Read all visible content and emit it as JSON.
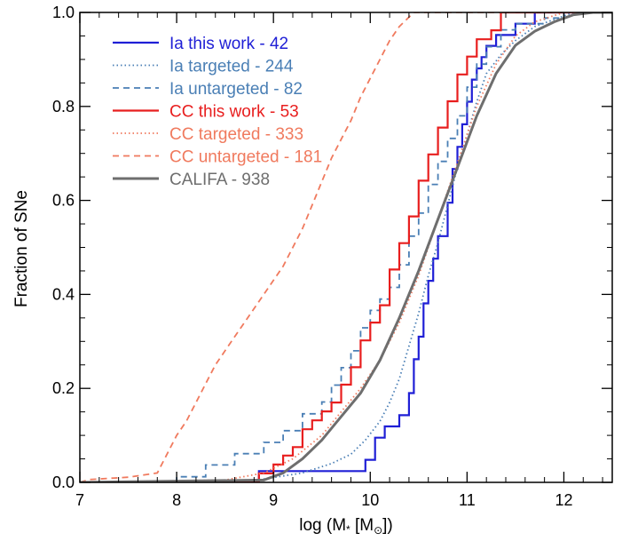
{
  "chart_data": {
    "type": "line",
    "xlabel_main": "log (M",
    "xlabel_sub": "*",
    "xlabel_mid": " [M",
    "xlabel_sun": "⊙",
    "xlabel_end": "])",
    "ylabel": "Fraction of SNe",
    "xlim": [
      7,
      12.5
    ],
    "ylim": [
      0,
      1.0
    ],
    "xticks": [
      "7",
      "8",
      "9",
      "10",
      "11",
      "12"
    ],
    "yticks": [
      "0.0",
      "0.2",
      "0.4",
      "0.6",
      "0.8",
      "1.0"
    ],
    "legend_position": "top-left",
    "series": [
      {
        "name": "Ia this work - 42",
        "color": "#1f1fd6",
        "dash": "solid",
        "step": true,
        "x": [
          7.0,
          8.85,
          9.95,
          10.05,
          10.15,
          10.3,
          10.4,
          10.45,
          10.5,
          10.55,
          10.6,
          10.65,
          10.7,
          10.8,
          10.85,
          10.9,
          10.95,
          11.0,
          11.05,
          11.1,
          11.15,
          11.2,
          11.3,
          11.5,
          11.7,
          11.85,
          12.5
        ],
        "y": [
          0.0,
          0.024,
          0.048,
          0.095,
          0.119,
          0.143,
          0.19,
          0.262,
          0.31,
          0.381,
          0.429,
          0.476,
          0.524,
          0.595,
          0.667,
          0.714,
          0.762,
          0.81,
          0.857,
          0.881,
          0.905,
          0.929,
          0.952,
          0.976,
          1.0,
          1.0,
          1.0
        ]
      },
      {
        "name": "Ia targeted - 244",
        "color": "#4a7fb5",
        "dash": "dotted",
        "step": false,
        "x": [
          7.0,
          8.8,
          9.3,
          9.6,
          9.8,
          9.95,
          10.1,
          10.2,
          10.3,
          10.4,
          10.5,
          10.6,
          10.7,
          10.8,
          10.9,
          11.0,
          11.1,
          11.2,
          11.35,
          11.5,
          11.7,
          11.9,
          12.1,
          12.5
        ],
        "y": [
          0.0,
          0.004,
          0.02,
          0.04,
          0.06,
          0.09,
          0.13,
          0.17,
          0.22,
          0.29,
          0.36,
          0.44,
          0.51,
          0.59,
          0.67,
          0.74,
          0.81,
          0.87,
          0.91,
          0.94,
          0.97,
          0.985,
          1.0,
          1.0
        ]
      },
      {
        "name": "Ia untargeted - 82",
        "color": "#4a7fb5",
        "dash": "dashed",
        "step": true,
        "x": [
          7.0,
          8.0,
          8.3,
          8.6,
          8.9,
          9.1,
          9.3,
          9.5,
          9.6,
          9.7,
          9.8,
          9.9,
          10.0,
          10.1,
          10.2,
          10.3,
          10.4,
          10.5,
          10.6,
          10.7,
          10.8,
          10.9,
          11.0,
          11.1,
          11.2,
          11.35,
          11.5,
          11.8,
          12.0,
          12.5
        ],
        "y": [
          0.0,
          0.012,
          0.037,
          0.061,
          0.085,
          0.11,
          0.146,
          0.171,
          0.207,
          0.244,
          0.28,
          0.329,
          0.366,
          0.39,
          0.415,
          0.463,
          0.524,
          0.573,
          0.634,
          0.683,
          0.732,
          0.78,
          0.841,
          0.89,
          0.927,
          0.963,
          0.976,
          0.988,
          1.0,
          1.0
        ]
      },
      {
        "name": "CC this work - 53",
        "color": "#e81e1e",
        "dash": "solid",
        "step": true,
        "x": [
          7.0,
          8.85,
          9.0,
          9.1,
          9.2,
          9.3,
          9.4,
          9.5,
          9.6,
          9.7,
          9.8,
          9.9,
          10.0,
          10.1,
          10.2,
          10.3,
          10.4,
          10.5,
          10.6,
          10.7,
          10.8,
          10.9,
          11.0,
          11.1,
          11.25,
          11.35,
          12.5
        ],
        "y": [
          0.0,
          0.019,
          0.038,
          0.057,
          0.075,
          0.113,
          0.132,
          0.151,
          0.17,
          0.208,
          0.245,
          0.302,
          0.34,
          0.377,
          0.453,
          0.509,
          0.566,
          0.642,
          0.698,
          0.755,
          0.811,
          0.868,
          0.906,
          0.943,
          0.962,
          1.0,
          1.0
        ]
      },
      {
        "name": "CC targeted - 333",
        "color": "#f07a5e",
        "dash": "dotted",
        "step": false,
        "x": [
          7.0,
          8.5,
          8.9,
          9.2,
          9.5,
          9.7,
          9.9,
          10.1,
          10.3,
          10.5,
          10.7,
          10.9,
          11.1,
          11.3,
          11.5,
          11.7,
          12.0,
          12.5
        ],
        "y": [
          0.0,
          0.005,
          0.02,
          0.05,
          0.1,
          0.15,
          0.2,
          0.26,
          0.34,
          0.44,
          0.56,
          0.68,
          0.8,
          0.89,
          0.95,
          0.98,
          1.0,
          1.0
        ]
      },
      {
        "name": "CC untargeted - 181",
        "color": "#f07a5e",
        "dash": "dashed",
        "step": false,
        "x": [
          7.0,
          7.1,
          7.5,
          7.8,
          7.9,
          8.0,
          8.1,
          8.2,
          8.3,
          8.4,
          8.5,
          8.6,
          8.7,
          8.8,
          8.9,
          9.0,
          9.1,
          9.2,
          9.3,
          9.4,
          9.5,
          9.6,
          9.7,
          9.8,
          9.9,
          10.0,
          10.1,
          10.2,
          10.3,
          10.4,
          10.45,
          12.5
        ],
        "y": [
          0.0,
          0.006,
          0.011,
          0.02,
          0.06,
          0.1,
          0.13,
          0.17,
          0.21,
          0.25,
          0.28,
          0.31,
          0.34,
          0.37,
          0.4,
          0.43,
          0.46,
          0.5,
          0.54,
          0.59,
          0.64,
          0.69,
          0.73,
          0.77,
          0.82,
          0.86,
          0.9,
          0.94,
          0.97,
          0.99,
          1.0,
          1.0
        ]
      },
      {
        "name": "CALIFA - 938",
        "color": "#6e6e6e",
        "dash": "solid",
        "step": false,
        "width": 3,
        "x": [
          7.0,
          8.9,
          9.1,
          9.3,
          9.5,
          9.7,
          9.9,
          10.1,
          10.3,
          10.5,
          10.7,
          10.9,
          11.1,
          11.3,
          11.5,
          11.7,
          11.9,
          12.1,
          12.3,
          12.5
        ],
        "y": [
          0.0,
          0.005,
          0.02,
          0.05,
          0.09,
          0.14,
          0.19,
          0.26,
          0.35,
          0.45,
          0.56,
          0.67,
          0.78,
          0.87,
          0.93,
          0.96,
          0.98,
          0.995,
          1.0,
          1.0
        ]
      }
    ]
  }
}
